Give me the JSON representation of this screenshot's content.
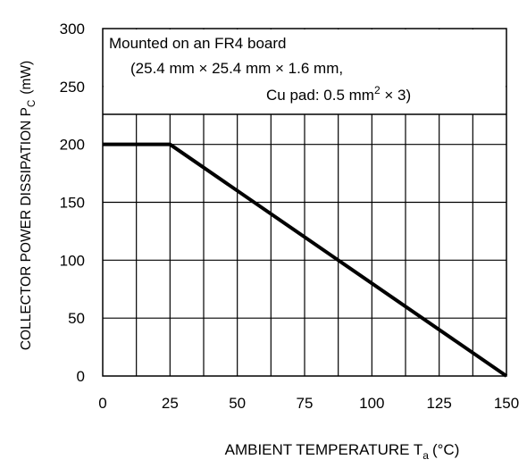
{
  "chart_data": {
    "type": "line",
    "title": "",
    "xlabel": {
      "text": "AMBIENT TEMPERATURE T",
      "subscript": "a",
      "unit": "(°C)"
    },
    "ylabel": {
      "text": "COLLECTOR POWER DISSIPATION P",
      "subscript": "C",
      "unit": "(mW)"
    },
    "xlim": [
      0,
      150
    ],
    "ylim": [
      0,
      300
    ],
    "x_ticks": [
      0,
      25,
      50,
      75,
      100,
      125,
      150
    ],
    "y_ticks": [
      0,
      50,
      100,
      150,
      200,
      250,
      300
    ],
    "grid": true,
    "grid_step_x": 12.5,
    "grid_step_y": 50,
    "series": [
      {
        "x": [
          0,
          25,
          150
        ],
        "y": [
          200,
          200,
          0
        ],
        "color": "#000000"
      }
    ],
    "annotation": {
      "line1": "Mounted on an FR4 board",
      "line2": "(25.4 mm × 25.4 mm × 1.6 mm,",
      "line3_pre": "Cu pad: 0.5 mm",
      "line3_sup": "2",
      "line3_post": " × 3)"
    }
  }
}
